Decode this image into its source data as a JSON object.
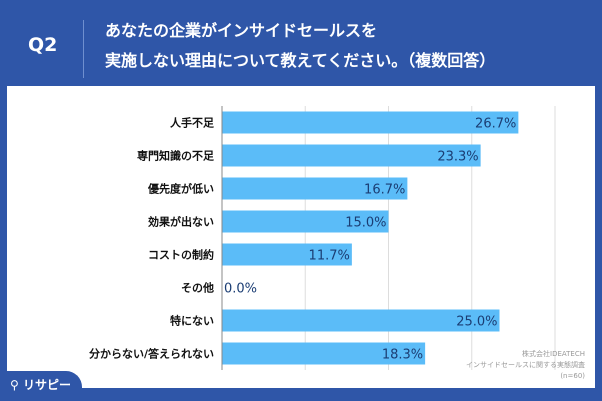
{
  "header": {
    "q_label": "Q2",
    "title_line1": "あなたの企業がインサイドセールスを",
    "title_line2": "実施しない理由について教えてください。（複数回答）"
  },
  "footer": {
    "source_line1": "株式会社IDEATECH",
    "source_line2": "インサイドセールスに関する実態調査",
    "source_line3": "(n=60)",
    "logo": "リサピー"
  },
  "colors": {
    "background": "#2f56a8",
    "bar": "#5bbcf8",
    "value_text": "#1b3d73"
  },
  "chart_data": {
    "type": "bar",
    "orientation": "horizontal",
    "categories": [
      "人手不足",
      "専門知識の不足",
      "優先度が低い",
      "効果が出ない",
      "コストの制約",
      "その他",
      "特にない",
      "分からない/答えられない"
    ],
    "values": [
      26.7,
      23.3,
      16.7,
      15.0,
      11.7,
      0.0,
      25.0,
      18.3
    ],
    "value_labels": [
      "26.7%",
      "23.3%",
      "16.7%",
      "15.0%",
      "11.7%",
      "0.0%",
      "25.0%",
      "18.3%"
    ],
    "xlim": [
      0,
      30
    ],
    "grid": true,
    "legend": "none"
  }
}
